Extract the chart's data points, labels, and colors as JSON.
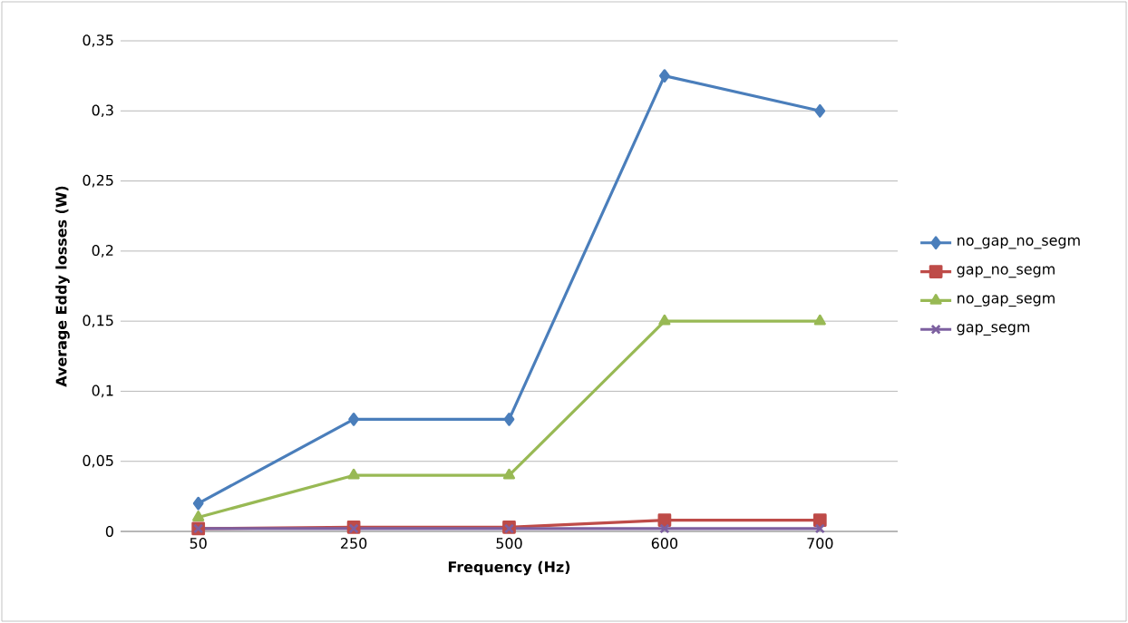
{
  "chart_data": {
    "type": "line",
    "xlabel": "Frequency (Hz)",
    "ylabel": "Average Eddy losses (W)",
    "categories": [
      "50",
      "250",
      "500",
      "600",
      "700"
    ],
    "series": [
      {
        "name": "no_gap_no_segm",
        "color": "#4a7ebb",
        "marker": "diamond",
        "values": [
          0.02,
          0.08,
          0.08,
          0.325,
          0.3
        ]
      },
      {
        "name": "gap_no_segm",
        "color": "#be4b48",
        "marker": "square",
        "values": [
          0.002,
          0.003,
          0.003,
          0.008,
          0.008
        ]
      },
      {
        "name": "no_gap_segm",
        "color": "#98b954",
        "marker": "triangle",
        "values": [
          0.01,
          0.04,
          0.04,
          0.15,
          0.15
        ]
      },
      {
        "name": "gap_segm",
        "color": "#7d60a0",
        "marker": "cross",
        "values": [
          0.002,
          0.002,
          0.002,
          0.002,
          0.002
        ]
      }
    ],
    "ylim": [
      0,
      0.35
    ],
    "yticks": [
      0,
      {
        "value": 0.05,
        "label": "0,05"
      },
      {
        "value": 0.1,
        "label": "0,1"
      },
      {
        "value": 0.15,
        "label": "0,15"
      },
      {
        "value": 0.2,
        "label": "0,2"
      },
      {
        "value": 0.25,
        "label": "0,25"
      },
      {
        "value": 0.3,
        "label": "0,3"
      },
      {
        "value": 0.35,
        "label": "0,35"
      }
    ],
    "grid": "y",
    "legend": "right",
    "line_style": "solid"
  }
}
